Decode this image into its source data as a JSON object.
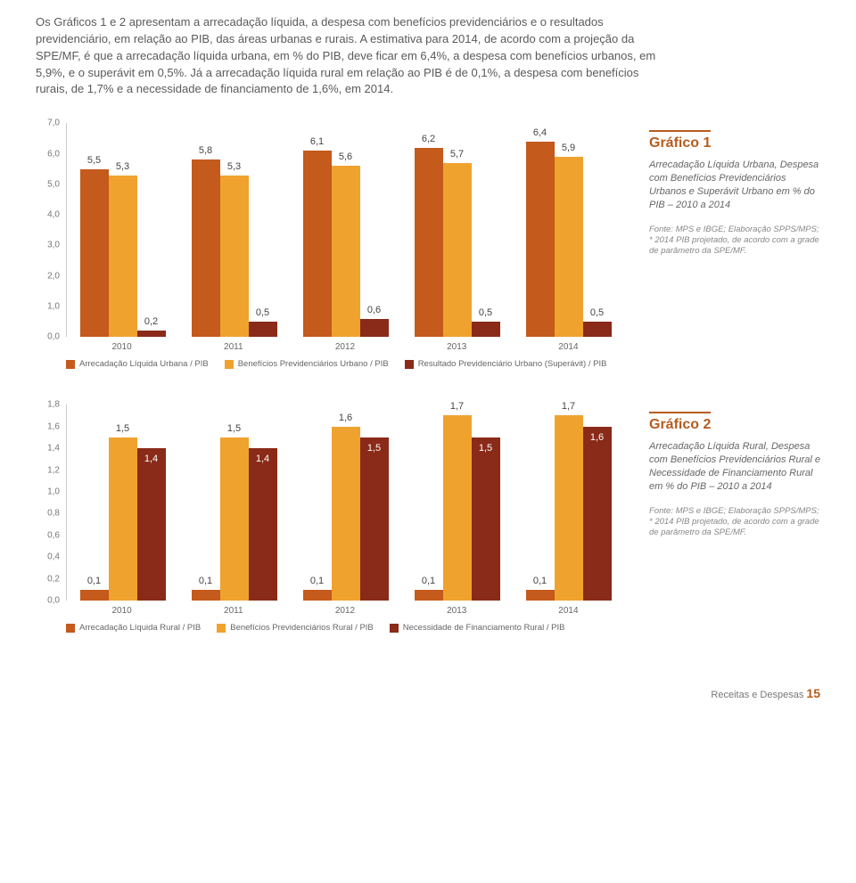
{
  "intro": "Os Gráficos 1 e 2 apresentam a arrecadação líquida, a despesa com benefícios previdenciários e o resultados previdenciário, em relação ao PIB, das áreas urbanas e rurais. A estimativa para 2014, de acordo com a projeção da SPE/MF, é que a arrecadação líquida urbana, em % do PIB, deve ficar em 6,4%, a despesa com benefícios urbanos, em 5,9%, e o superávit em 0,5%. Já a arrecadação líquida rural em relação ao PIB é de 0,1%, a despesa com benefícios rurais, de 1,7% e a necessidade de financiamento de 1,6%, em 2014.",
  "chart1": {
    "type": "bar",
    "title": "Gráfico 1",
    "desc": "Arrecadação Líquida Urbana, Despesa com Benefícios Previdenciários Urbanos e Superávit Urbano em % do PIB – 2010 a 2014",
    "source": "Fonte: MPS e IBGE; Elaboração SPPS/MPS; * 2014 PIB projetado, de acordo com a grade de parâmetro da SPE/MF.",
    "ymax": 7.0,
    "yticks": [
      "7,0",
      "6,0",
      "5,0",
      "4,0",
      "3,0",
      "2,0",
      "1,0",
      "0,0"
    ],
    "categories": [
      "2010",
      "2011",
      "2012",
      "2013",
      "2014"
    ],
    "series": [
      {
        "name": "Arrecadação Líquida Urbana / PIB",
        "color": "#c45a1c",
        "labels": [
          "5,5",
          "5,8",
          "6,1",
          "6,2",
          "6,4"
        ],
        "values": [
          5.5,
          5.8,
          6.1,
          6.2,
          6.4
        ]
      },
      {
        "name": "Benefícios Previdenciários Urbano / PIB",
        "color": "#f0a22e",
        "labels": [
          "5,3",
          "5,3",
          "5,6",
          "5,7",
          "5,9"
        ],
        "values": [
          5.3,
          5.3,
          5.6,
          5.7,
          5.9
        ]
      },
      {
        "name": "Resultado Previdenciário Urbano (Superávit) / PIB",
        "color": "#8a2a18",
        "labels": [
          "0,2",
          "0,5",
          "0,6",
          "0,5",
          "0,5"
        ],
        "values": [
          0.2,
          0.5,
          0.6,
          0.5,
          0.5
        ]
      }
    ]
  },
  "chart2": {
    "type": "bar",
    "title": "Gráfico 2",
    "desc": "Arrecadação Líquida Rural, Despesa com Benefícios Previdenciários Rural e Necessidade de Financiamento Rural em % do PIB – 2010 a 2014",
    "source": "Fonte: MPS e IBGE; Elaboração SPPS/MPS; * 2014 PIB projetado, de acordo com a grade de parâmetro da SPE/MF.",
    "ymax": 1.8,
    "yticks": [
      "1,8",
      "1,6",
      "1,4",
      "1,2",
      "1,0",
      "0,8",
      "0,6",
      "0,4",
      "0,2",
      "0,0"
    ],
    "categories": [
      "2010",
      "2011",
      "2012",
      "2013",
      "2014"
    ],
    "series": [
      {
        "name": "Arrecadação Líquida Rural / PIB",
        "color": "#c45a1c",
        "labels": [
          "0,1",
          "0,1",
          "0,1",
          "0,1",
          "0,1"
        ],
        "values": [
          0.1,
          0.1,
          0.1,
          0.1,
          0.1
        ]
      },
      {
        "name": "Benefícios Previdenciários Rural / PIB",
        "color": "#f0a22e",
        "labels": [
          "1,5",
          "1,5",
          "1,6",
          "1,7",
          "1,7"
        ],
        "values": [
          1.5,
          1.5,
          1.6,
          1.7,
          1.7
        ]
      },
      {
        "name": "Necessidade de Financiamento Rural / PIB",
        "color": "#8a2a18",
        "labels": [
          "1,4",
          "1,4",
          "1,5",
          "1,5",
          "1,6"
        ],
        "values": [
          1.4,
          1.4,
          1.5,
          1.5,
          1.6
        ]
      }
    ]
  },
  "footer_text": "Receitas e Despesas",
  "footer_page": "15"
}
